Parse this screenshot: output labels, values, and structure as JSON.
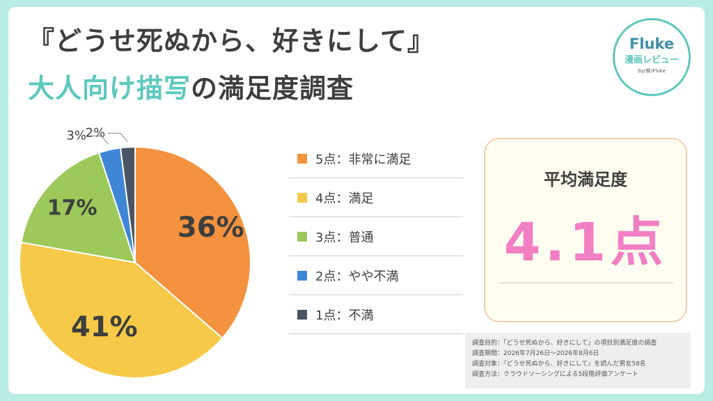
{
  "title": {
    "line1": "『どうせ死ぬから、好きにして』",
    "line2_highlight": "大人向け描写",
    "line2_rest": "の満足度調査"
  },
  "logo": {
    "brand": "Fluke",
    "sub": "漫画レビュー",
    "by": "by(株)Fluke"
  },
  "chart_data": {
    "type": "pie",
    "title": "",
    "slices": [
      {
        "label": "5点：非常に満足",
        "value": 36,
        "display": "36%",
        "color": "#f4923f"
      },
      {
        "label": "4点：満足",
        "value": 41,
        "display": "41%",
        "color": "#f7c948"
      },
      {
        "label": "3点：普通",
        "value": 17,
        "display": "17%",
        "color": "#9dc85a"
      },
      {
        "label": "2点：やや不満",
        "value": 3,
        "display": "3%",
        "color": "#3f86d6"
      },
      {
        "label": "1点：不満",
        "value": 2,
        "display": "2%",
        "color": "#4a5564"
      }
    ],
    "legend_position": "right"
  },
  "summary": {
    "label": "平均満足度",
    "value": "4.1点"
  },
  "notes": [
    "調査目的：「どうせ死ぬから、好きにして」の項目別満足度の調査",
    "調査期間：2026年7月26日〜2026年8月6日",
    "調査対象：『どうせ死ぬから、好きにして』を読んだ男女58名",
    "調査方法：クラウドソーシングによる5段階評価アンケート"
  ]
}
